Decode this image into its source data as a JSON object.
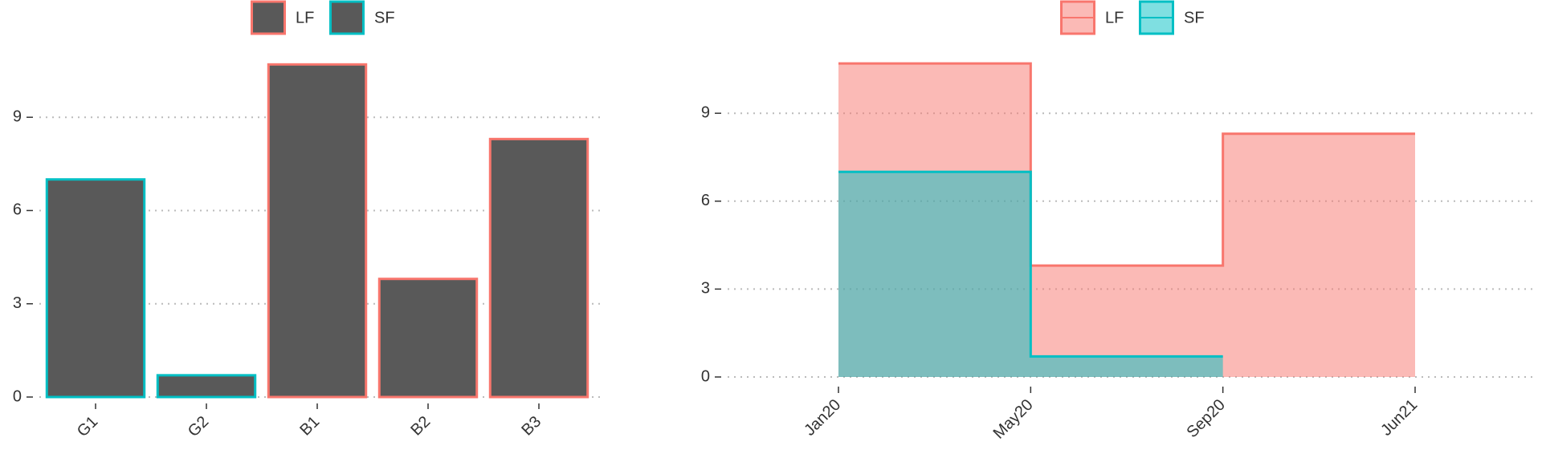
{
  "chart_data": [
    {
      "type": "bar",
      "categories": [
        "G1",
        "G2",
        "B1",
        "B2",
        "B3"
      ],
      "fill": "#595959",
      "series": [
        {
          "name": "LF",
          "color": "#f8766d",
          "values": [
            null,
            null,
            10.7,
            3.8,
            8.3
          ]
        },
        {
          "name": "SF",
          "color": "#00bfc4",
          "values": [
            7.0,
            0.7,
            null,
            null,
            null
          ]
        }
      ],
      "ylim": [
        0,
        11.25
      ],
      "yticks": [
        0,
        3,
        6,
        9
      ],
      "grid": true,
      "legend": "top"
    },
    {
      "type": "step-area",
      "categories": [
        "Jan20",
        "May20",
        "Sep20",
        "Jun21"
      ],
      "series": [
        {
          "name": "LF",
          "color": "#f8766d",
          "values": [
            10.7,
            3.8,
            8.3,
            8.3
          ]
        },
        {
          "name": "SF",
          "color": "#00bfc4",
          "values": [
            7.0,
            0.7,
            0.7,
            null
          ]
        }
      ],
      "ylim": [
        0,
        11.25
      ],
      "yticks": [
        0,
        3,
        6,
        9
      ],
      "grid": true,
      "legend": "top"
    }
  ]
}
